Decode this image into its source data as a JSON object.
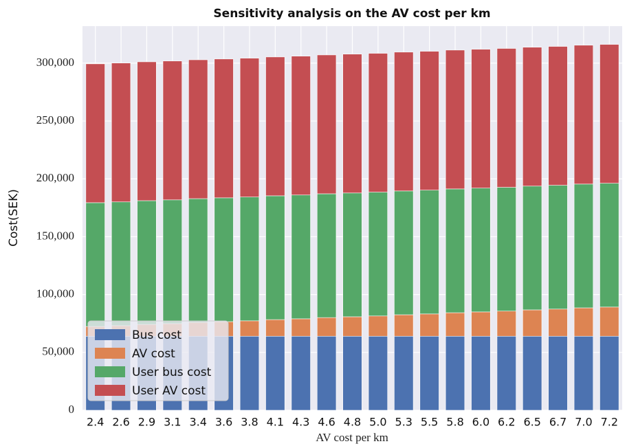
{
  "chart_data": {
    "type": "stacked_bar",
    "title": "Sensitivity analysis on the AV cost per km",
    "x_label": "AV cost per km",
    "y_label": "Cost(SEK)",
    "categories": [
      "2.4",
      "2.6",
      "2.9",
      "3.1",
      "3.4",
      "3.6",
      "3.8",
      "4.1",
      "4.3",
      "4.6",
      "4.8",
      "5.0",
      "5.3",
      "5.5",
      "5.8",
      "6.0",
      "6.2",
      "6.5",
      "6.7",
      "7.0",
      "7.2"
    ],
    "series": [
      {
        "name": "Bus cost",
        "color": "#4c72b0",
        "values": [
          64000,
          64000,
          64000,
          64000,
          64000,
          64000,
          64000,
          64000,
          64000,
          64000,
          64000,
          64000,
          64000,
          64000,
          64000,
          64000,
          64000,
          64000,
          64000,
          64000,
          64000
        ]
      },
      {
        "name": "AV cost",
        "color": "#dd8452",
        "values": [
          8400,
          9100,
          10150,
          10850,
          11900,
          12600,
          13300,
          14350,
          15050,
          16100,
          16800,
          17500,
          18550,
          19250,
          20300,
          21000,
          21700,
          22750,
          23450,
          24500,
          25200
        ]
      },
      {
        "name": "User bus cost",
        "color": "#55a868",
        "values": [
          107000,
          107000,
          107000,
          107000,
          107000,
          107000,
          107000,
          107000,
          107000,
          107000,
          107000,
          107000,
          107000,
          107000,
          107000,
          107000,
          107000,
          107000,
          107000,
          107000,
          107000
        ]
      },
      {
        "name": "User AV cost",
        "color": "#c44e52",
        "values": [
          120000,
          120000,
          120000,
          120000,
          120000,
          120000,
          120000,
          120000,
          120000,
          120000,
          120000,
          120000,
          120000,
          120000,
          120000,
          120000,
          120000,
          120000,
          120000,
          120000,
          120000
        ]
      }
    ],
    "ylim": [
      0,
      332000
    ],
    "yticks": [
      0,
      {
        "value": 50000,
        "label": "50,000"
      },
      {
        "value": 100000,
        "label": "100,000"
      },
      {
        "value": 150000,
        "label": "150,000"
      },
      {
        "value": 200000,
        "label": "200,000"
      },
      {
        "value": 250000,
        "label": "250,000"
      },
      {
        "value": 300000,
        "label": "300,000"
      }
    ],
    "grid": true,
    "legend_position": "lower left"
  }
}
